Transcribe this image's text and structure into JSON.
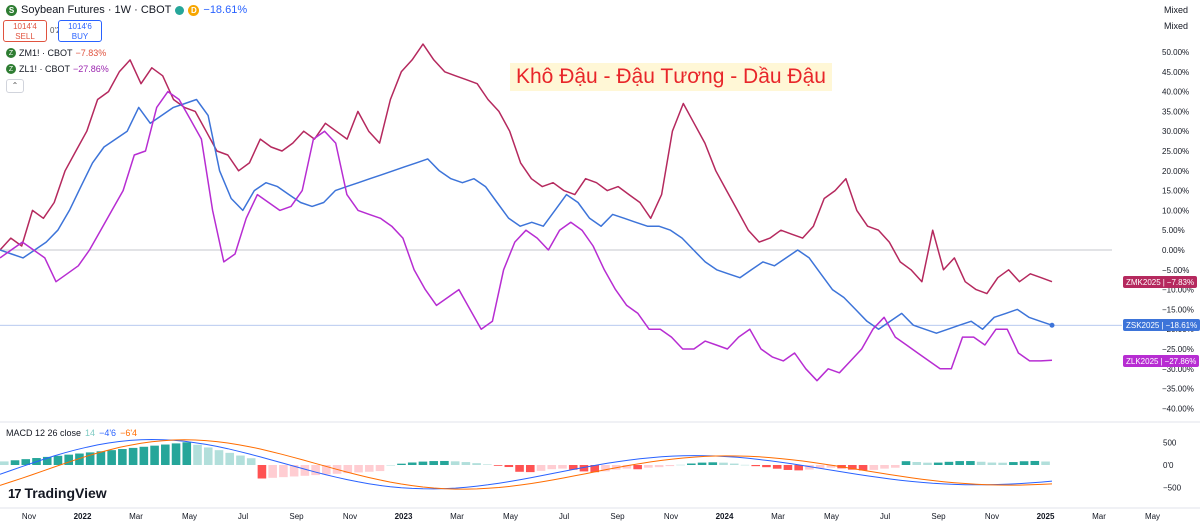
{
  "header": {
    "symbol_title": "Soybean Futures · 1W · CBOT",
    "d_badge": "D",
    "change": "−18.61%"
  },
  "trade": {
    "sell_price": "1014'4",
    "sell_label": "SELL",
    "spread": "0'2",
    "buy_price": "1014'6",
    "buy_label": "BUY"
  },
  "compare": [
    {
      "name": "ZM1! · CBOT",
      "change": "−7.83%",
      "color": "#e0533f"
    },
    {
      "name": "ZL1! · CBOT",
      "change": "−27.86%",
      "color": "#9c27b0"
    }
  ],
  "scale_mode": [
    "Mixed",
    "Mixed"
  ],
  "annotation": "Khô Đậu - Đậu Tương - Dầu Đậu",
  "tags": [
    {
      "name": "ZMK2025",
      "value": "−7.83%",
      "color": "#b5295e"
    },
    {
      "name": "ZSK2025",
      "value": "−18.61%",
      "color": "#3d74d9"
    },
    {
      "name": "ZLK2025",
      "value": "−27.86%",
      "color": "#b72dd2"
    }
  ],
  "macd": {
    "label": "MACD 12 26 close",
    "hist_value": "14",
    "macd_value": "−4'6",
    "signal_value": "−6'4",
    "y_ticks": [
      "500",
      "0'0",
      "−500"
    ]
  },
  "branding": {
    "logo_text": "TradingView"
  },
  "chart_data": {
    "type": "line",
    "y_unit": "%",
    "ylim": [
      -40,
      52
    ],
    "y_ticks": [
      "50.00%",
      "45.00%",
      "40.00%",
      "35.00%",
      "30.00%",
      "25.00%",
      "20.00%",
      "15.00%",
      "10.00%",
      "5.00%",
      "0.00%",
      "−5.00%",
      "−10.00%",
      "−15.00%",
      "−20.00%",
      "−25.00%",
      "−30.00%",
      "−35.00%",
      "−40.00%"
    ],
    "x_ticks": [
      "Nov",
      "2022",
      "Mar",
      "May",
      "Jul",
      "Sep",
      "Nov",
      "2023",
      "Mar",
      "May",
      "Jul",
      "Sep",
      "Nov",
      "2024",
      "Mar",
      "May",
      "Jul",
      "Sep",
      "Nov",
      "2025",
      "Mar",
      "May",
      "Jul"
    ],
    "series": [
      {
        "name": "ZMK2025",
        "color": "#b5295e",
        "values": [
          0,
          3,
          1,
          10,
          8,
          12,
          20,
          25,
          30,
          38,
          40,
          45,
          48,
          42,
          46,
          44,
          38,
          36,
          35,
          30,
          25,
          24,
          20,
          22,
          28,
          26,
          25,
          27,
          30,
          28,
          32,
          30,
          28,
          35,
          30,
          27,
          38,
          45,
          48,
          52,
          48,
          45,
          44,
          43,
          42,
          38,
          35,
          30,
          22,
          18,
          16,
          17,
          15,
          14,
          18,
          17,
          15,
          16,
          14,
          12,
          8,
          14,
          30,
          37,
          32,
          27,
          20,
          15,
          10,
          5,
          2,
          3,
          5,
          4,
          3,
          6,
          13,
          15,
          18,
          10,
          6,
          5,
          2,
          -3,
          -5,
          -8,
          5,
          -5,
          -2,
          -8,
          -10,
          -11,
          -7,
          -5,
          -8,
          -6,
          -7,
          -8
        ]
      },
      {
        "name": "ZSK2025",
        "color": "#3d74d9",
        "values": [
          0,
          -1,
          -2,
          0,
          2,
          5,
          10,
          16,
          22,
          26,
          28,
          30,
          36,
          32,
          34,
          36,
          37,
          38,
          34,
          20,
          13,
          10,
          15,
          17,
          16,
          14,
          12,
          11,
          12,
          15,
          16,
          17,
          18,
          19,
          20,
          21,
          22,
          23,
          20,
          18,
          17,
          18,
          16,
          12,
          8,
          6,
          7,
          6,
          10,
          14,
          12,
          8,
          6,
          9,
          8,
          7,
          6,
          6,
          5,
          3,
          0,
          -3,
          -5,
          -6,
          -7,
          -5,
          -3,
          -4,
          -2,
          0,
          -2,
          -6,
          -10,
          -12,
          -15,
          -18,
          -20,
          -18,
          -16,
          -19,
          -20,
          -21,
          -20,
          -19,
          -18,
          -20,
          -17,
          -16,
          -15,
          -17,
          -18,
          -19
        ]
      },
      {
        "name": "ZLK2025",
        "color": "#b72dd2",
        "values": [
          -2,
          0,
          2,
          0,
          -2,
          -8,
          -6,
          -4,
          0,
          5,
          10,
          15,
          24,
          25,
          36,
          40,
          38,
          33,
          28,
          10,
          -3,
          -1,
          8,
          14,
          12,
          10,
          11,
          15,
          28,
          30,
          27,
          14,
          10,
          9,
          8,
          6,
          3,
          -5,
          -10,
          -14,
          -12,
          -10,
          -15,
          -20,
          -18,
          -5,
          2,
          5,
          3,
          0,
          5,
          7,
          5,
          1,
          -5,
          -10,
          -14,
          -16,
          -20,
          -20,
          -22,
          -25,
          -25,
          -23,
          -24,
          -25,
          -22,
          -20,
          -25,
          -27,
          -28,
          -26,
          -30,
          -33,
          -30,
          -31,
          -28,
          -25,
          -20,
          -17,
          -22,
          -24,
          -26,
          -28,
          -30,
          -30,
          -22,
          -22,
          -24,
          -20,
          -20,
          -26,
          -28,
          -28,
          -27.86
        ]
      }
    ]
  }
}
